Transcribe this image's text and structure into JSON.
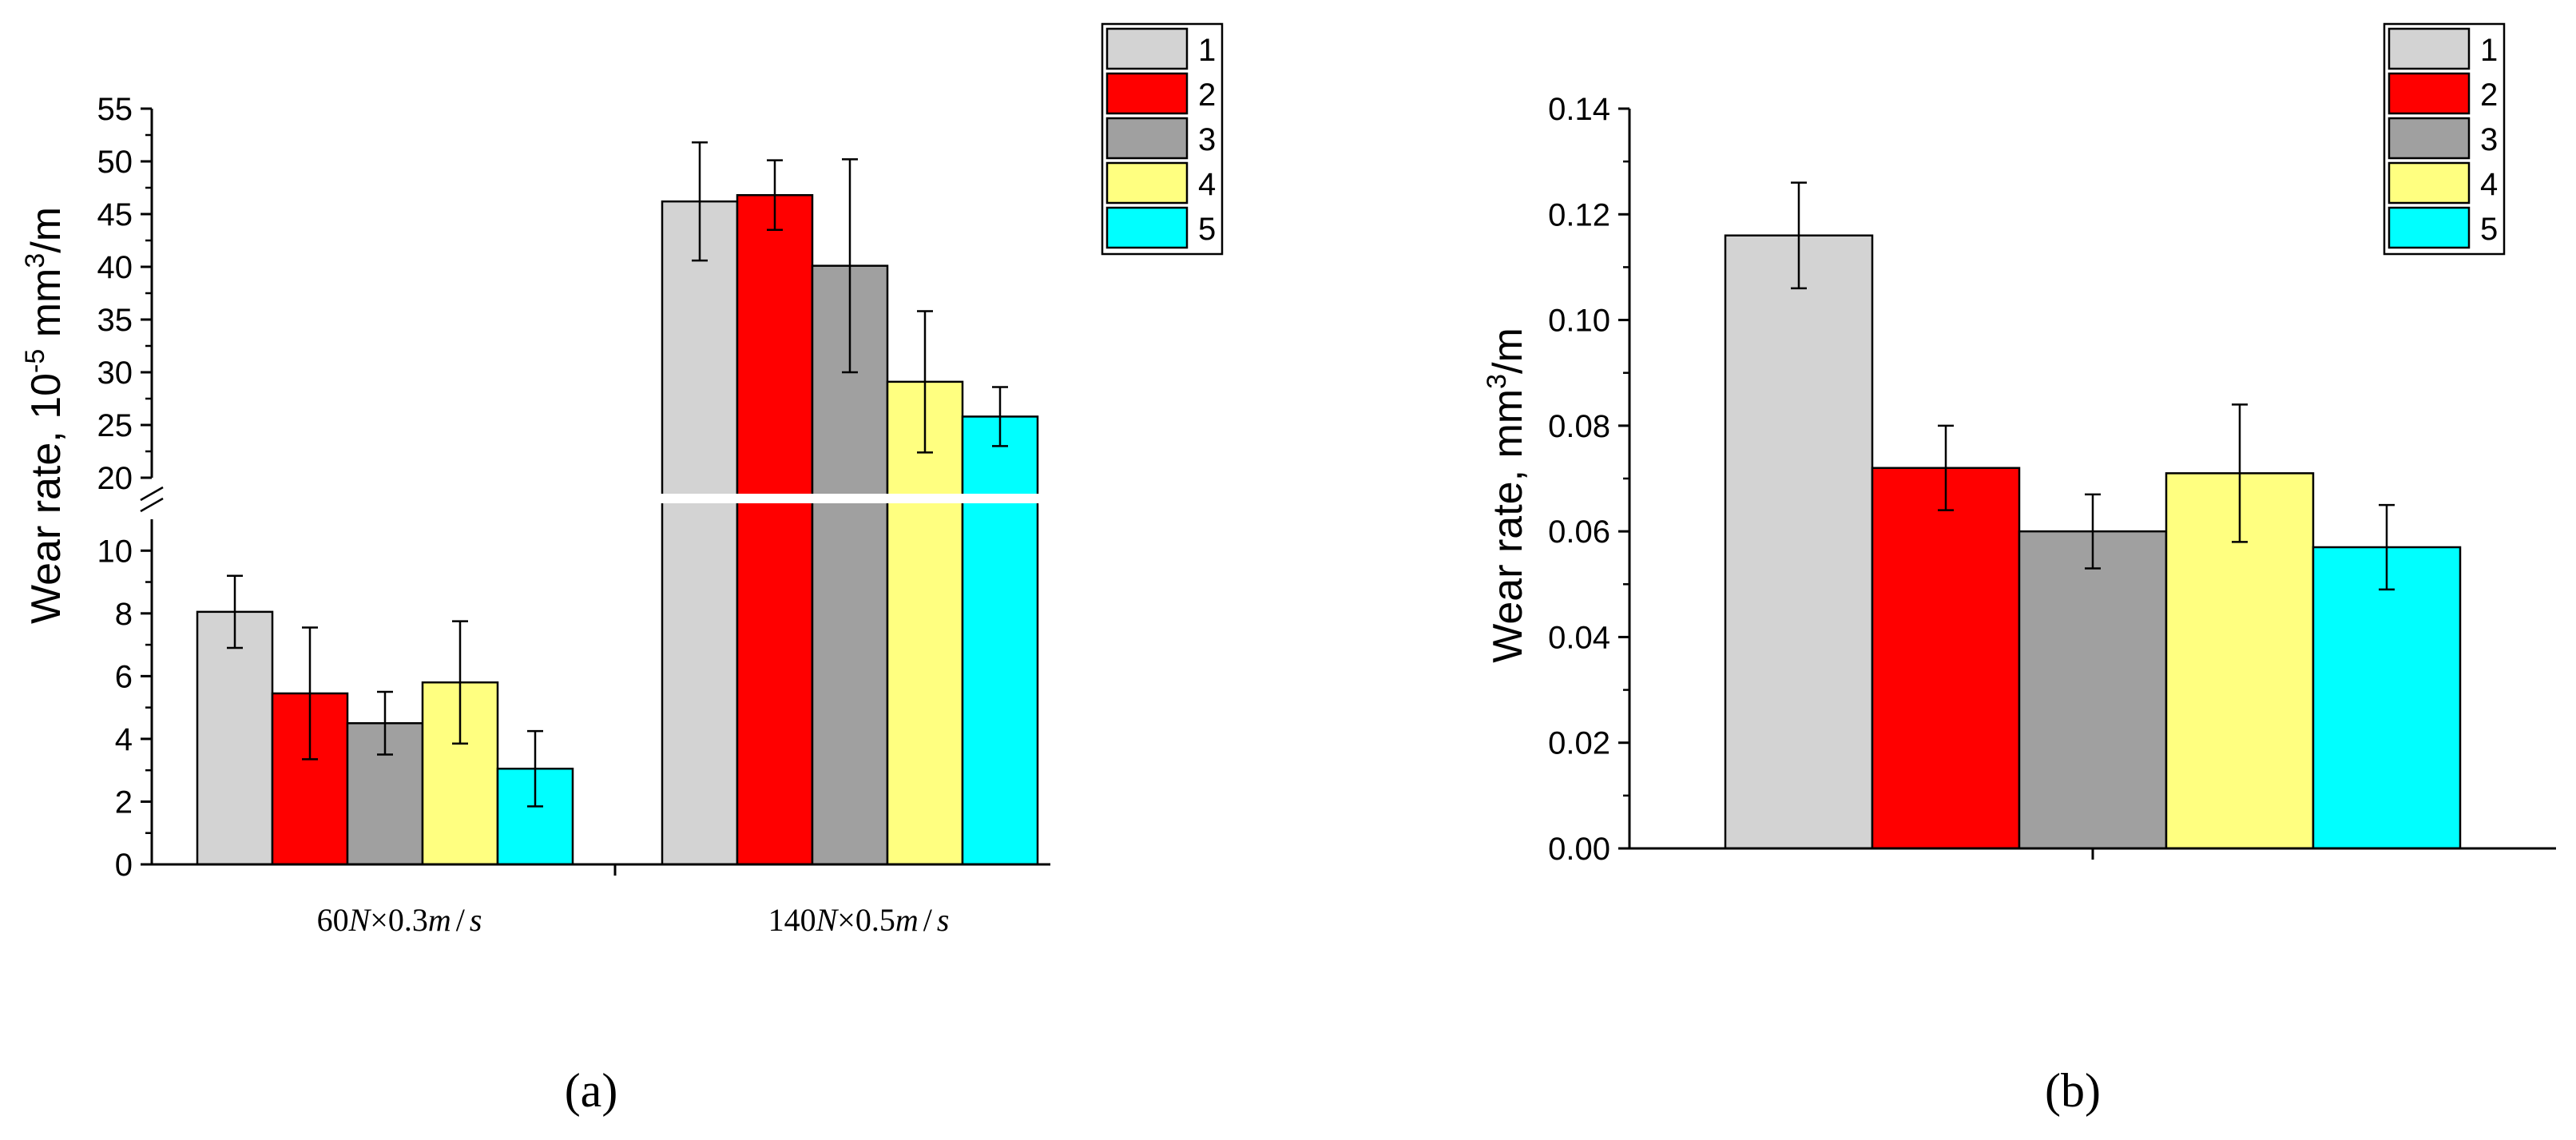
{
  "chart_data": [
    {
      "panel": "a",
      "type": "bar",
      "categories": [
        "60N×0.3m/s",
        "140N×0.5m/s"
      ],
      "category_labels": [
        {
          "num": "60",
          "v1": "N",
          "sym": "×",
          "num2": "0.3",
          "v2": "m",
          "slash": "/",
          "v3": "s"
        },
        {
          "num": "140",
          "v1": "N",
          "sym": "×",
          "num2": "0.5",
          "v2": "m",
          "slash": "/",
          "v3": "s"
        }
      ],
      "series": [
        {
          "name": "1",
          "color": "#d3d3d3",
          "values": [
            8.05,
            46.2
          ],
          "errors": [
            1.15,
            5.6
          ]
        },
        {
          "name": "2",
          "color": "#ff0000",
          "values": [
            5.45,
            46.8
          ],
          "errors": [
            2.1,
            3.3
          ]
        },
        {
          "name": "3",
          "color": "#a0a0a0",
          "values": [
            4.5,
            40.1
          ],
          "errors": [
            1.0,
            10.1
          ]
        },
        {
          "name": "4",
          "color": "#ffff80",
          "values": [
            5.8,
            29.1
          ],
          "errors": [
            1.95,
            6.7
          ]
        },
        {
          "name": "5",
          "color": "#00ffff",
          "values": [
            3.05,
            25.8
          ],
          "errors": [
            1.2,
            2.8
          ]
        }
      ],
      "ylabel": {
        "prefix": "Wear rate,  10",
        "exp": "-5",
        "unit": " mm",
        "unit_exp": "3",
        "suffix": "/m"
      },
      "axis_break": {
        "lower": [
          0,
          11
        ],
        "upper": [
          20,
          55
        ]
      },
      "lower_ticks": [
        0,
        2,
        4,
        6,
        8,
        10
      ],
      "upper_ticks": [
        20,
        25,
        30,
        35,
        40,
        45,
        50,
        55
      ],
      "lower_tick_labels": [
        "0",
        "2",
        "4",
        "6",
        "8",
        "10"
      ],
      "upper_tick_labels": [
        "20",
        "25",
        "30",
        "35",
        "40",
        "45",
        "50",
        "55"
      ],
      "legend_position": "top-right",
      "panel_label": "(a)"
    },
    {
      "panel": "b",
      "type": "bar",
      "categories": [
        ""
      ],
      "series": [
        {
          "name": "1",
          "color": "#d3d3d3",
          "values": [
            0.116
          ],
          "errors": [
            0.01
          ]
        },
        {
          "name": "2",
          "color": "#ff0000",
          "values": [
            0.072
          ],
          "errors": [
            0.008
          ]
        },
        {
          "name": "3",
          "color": "#a0a0a0",
          "values": [
            0.06
          ],
          "errors": [
            0.007
          ]
        },
        {
          "name": "4",
          "color": "#ffff80",
          "values": [
            0.071
          ],
          "errors": [
            0.013
          ]
        },
        {
          "name": "5",
          "color": "#00ffff",
          "values": [
            0.057
          ],
          "errors": [
            0.008
          ]
        }
      ],
      "ylabel": {
        "prefix": "Wear rate, mm",
        "unit_exp": "3",
        "suffix": "/m"
      },
      "ylim": [
        0,
        0.14
      ],
      "yticks": [
        0,
        0.02,
        0.04,
        0.06,
        0.08,
        0.1,
        0.12,
        0.14
      ],
      "ytick_labels": [
        "0.00",
        "0.02",
        "0.04",
        "0.06",
        "0.08",
        "0.10",
        "0.12",
        "0.14"
      ],
      "legend_position": "top-right",
      "panel_label": "(b)"
    }
  ]
}
